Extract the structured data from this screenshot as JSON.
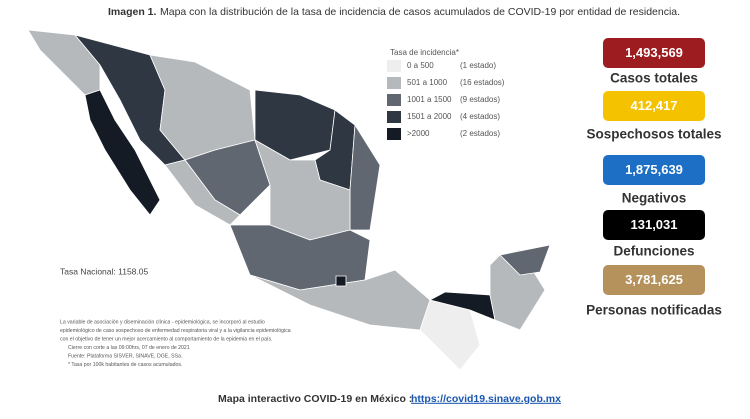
{
  "header": {
    "label": "Imagen 1.",
    "title": "Mapa con la distribución de la tasa de incidencia de casos acumulados de COVID-19 por entidad de residencia."
  },
  "legend": {
    "title": "Tasa de incidencia*",
    "items": [
      {
        "range": "0 a 500",
        "count": "(1 estado)",
        "color": "#eeeeee"
      },
      {
        "range": "501 a 1000",
        "count": "(16 estados)",
        "color": "#b6b9bc"
      },
      {
        "range": "1001 a 1500",
        "count": "(9 estados)",
        "color": "#606771"
      },
      {
        "range": "1501 a 2000",
        "count": "(4 estados)",
        "color": "#2f3743"
      },
      {
        "range": ">2000",
        "count": "(2 estados)",
        "color": "#151b24"
      }
    ]
  },
  "national_rate": "Tasa Nacional: 1158.05",
  "notes": [
    "La variable de asociación y diseminación clínica - epidemiológica, se incorporó al estudio",
    "epidemiológico de caso sospechoso de enfermedad respiratoria viral y a la vigilancia epidemiológica",
    "con el objetivo de tener un mejor acercamiento al comportamiento de la epidemia en el país.",
    "Cierre con corte a las 09:00hrs, 07 de enero de 2021",
    "Fuente: Plataforma SISVER, SINAVE, DGE, SSa.",
    "* Tasa por 100k habitantes de casos acumulados."
  ],
  "stats": [
    {
      "value": "1,493,569",
      "label": "Casos totales",
      "color": "#9c1c20"
    },
    {
      "value": "412,417",
      "label": "Sospechosos totales",
      "color": "#f5c200"
    },
    {
      "value": "1,875,639",
      "label": "Negativos",
      "color": "#1c6fc4"
    },
    {
      "value": "131,031",
      "label": "Defunciones",
      "color": "#000000"
    },
    {
      "value": "3,781,625",
      "label": "Personas notificadas",
      "color": "#b5915c"
    }
  ],
  "footer": {
    "text": "Mapa interactivo COVID-19 en México :",
    "link": "https://covid19.sinave.gob.mx"
  }
}
